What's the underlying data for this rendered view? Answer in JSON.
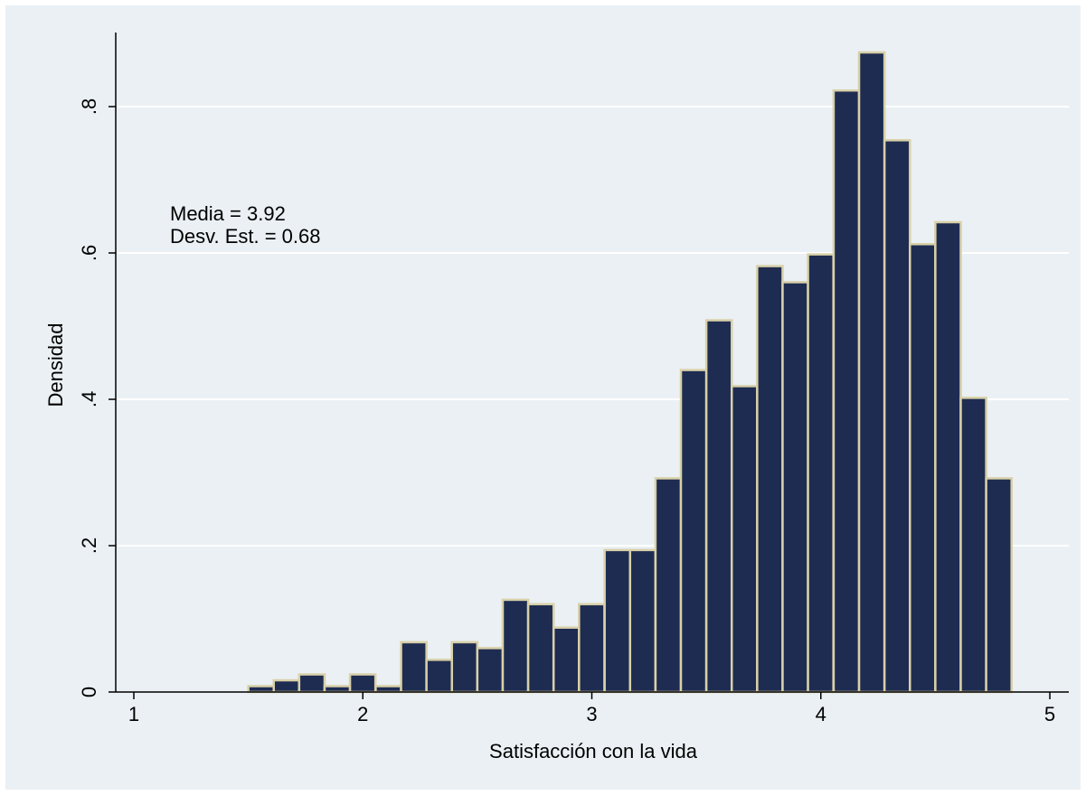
{
  "chart_data": {
    "type": "bar",
    "subtype": "histogram",
    "xlabel": "Satisfacción con la vida",
    "ylabel": "Densidad",
    "xlim": [
      1,
      5
    ],
    "ylim": [
      0,
      0.9
    ],
    "x_ticks": [
      {
        "value": 1,
        "label": "1"
      },
      {
        "value": 2,
        "label": "2"
      },
      {
        "value": 3,
        "label": "3"
      },
      {
        "value": 4,
        "label": "4"
      },
      {
        "value": 5,
        "label": "5"
      }
    ],
    "y_ticks": [
      {
        "value": 0,
        "label": "0"
      },
      {
        "value": 0.2,
        "label": ".2"
      },
      {
        "value": 0.4,
        "label": ".4"
      },
      {
        "value": 0.6,
        "label": ".6"
      },
      {
        "value": 0.8,
        "label": ".8"
      }
    ],
    "grid": true,
    "bin_width": 0.111,
    "bins": [
      {
        "start": 1.5,
        "density": 0.008
      },
      {
        "start": 1.611,
        "density": 0.016
      },
      {
        "start": 1.722,
        "density": 0.024
      },
      {
        "start": 1.833,
        "density": 0.008
      },
      {
        "start": 1.944,
        "density": 0.024
      },
      {
        "start": 2.056,
        "density": 0.008
      },
      {
        "start": 2.167,
        "density": 0.068
      },
      {
        "start": 2.278,
        "density": 0.044
      },
      {
        "start": 2.389,
        "density": 0.068
      },
      {
        "start": 2.5,
        "density": 0.06
      },
      {
        "start": 2.611,
        "density": 0.126
      },
      {
        "start": 2.722,
        "density": 0.12
      },
      {
        "start": 2.833,
        "density": 0.088
      },
      {
        "start": 2.944,
        "density": 0.12
      },
      {
        "start": 3.056,
        "density": 0.194
      },
      {
        "start": 3.167,
        "density": 0.194
      },
      {
        "start": 3.278,
        "density": 0.292
      },
      {
        "start": 3.389,
        "density": 0.44
      },
      {
        "start": 3.5,
        "density": 0.508
      },
      {
        "start": 3.611,
        "density": 0.418
      },
      {
        "start": 3.722,
        "density": 0.582
      },
      {
        "start": 3.833,
        "density": 0.56
      },
      {
        "start": 3.944,
        "density": 0.598
      },
      {
        "start": 4.056,
        "density": 0.822
      },
      {
        "start": 4.167,
        "density": 0.874
      },
      {
        "start": 4.278,
        "density": 0.754
      },
      {
        "start": 4.389,
        "density": 0.612
      },
      {
        "start": 4.5,
        "density": 0.642
      },
      {
        "start": 4.611,
        "density": 0.402
      },
      {
        "start": 4.722,
        "density": 0.292
      }
    ],
    "annotations": [
      "Media = 3.92",
      "Desv. Est. = 0.68"
    ],
    "colors": {
      "bar_fill": "#1e2c52",
      "bar_edge": "#d8d0a8",
      "background": "#eaf0f3",
      "grid": "#ffffff"
    }
  }
}
